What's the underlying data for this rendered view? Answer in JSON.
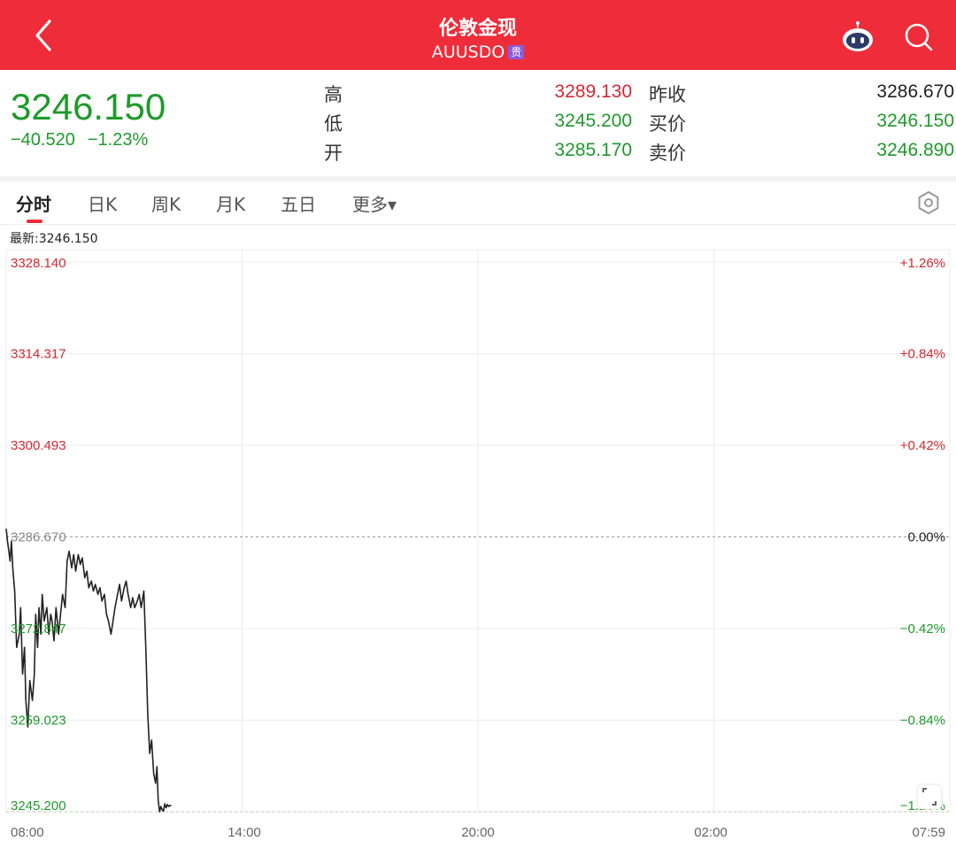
{
  "header": {
    "title": "伦敦金现",
    "subtitle": "AUUSDO",
    "badge": "贵",
    "back_icon": "chevron-left-icon",
    "robot_icon": "robot-icon",
    "search_icon": "search-icon"
  },
  "quote": {
    "last": "3246.150",
    "change": "−40.520",
    "change_pct": "−1.23%",
    "high_label": "高",
    "high": "3289.130",
    "low_label": "低",
    "low": "3245.200",
    "open_label": "开",
    "open": "3285.170",
    "prev_label": "昨收",
    "prev": "3286.670",
    "bid_label": "买价",
    "bid": "3246.150",
    "ask_label": "卖价",
    "ask": "3246.890",
    "colors": {
      "up": "#d5292f",
      "down": "#1e9a2b",
      "neutral": "#222222"
    }
  },
  "tabs": [
    {
      "label": "分时"
    },
    {
      "label": "日K"
    },
    {
      "label": "周K"
    },
    {
      "label": "月K"
    },
    {
      "label": "五日"
    },
    {
      "label": "更多▾"
    }
  ],
  "active_tab": 0,
  "latest_label": "最新:3246.150",
  "chart_data": {
    "type": "line",
    "prev_close": 3286.67,
    "ylim": [
      3245.2,
      3328.14
    ],
    "y_ticks": [
      "3328.140",
      "3314.317",
      "3300.493",
      "3286.670",
      "3272.847",
      "3259.023",
      "3245.200"
    ],
    "y_tick_values": [
      3328.14,
      3314.317,
      3300.493,
      3286.67,
      3272.847,
      3259.023,
      3245.2
    ],
    "pct_ticks": [
      "+1.26%",
      "+0.84%",
      "+0.42%",
      "0.00%",
      "−0.42%",
      "−0.84%",
      "−1.26%"
    ],
    "x_ticks": [
      "08:00",
      "14:00",
      "20:00",
      "02:00",
      "07:59"
    ],
    "session_minutes": 1440,
    "grid": true,
    "series": [
      {
        "x": [
          0,
          2,
          4,
          6,
          8,
          10,
          13,
          16,
          20,
          22,
          25,
          28,
          30,
          33,
          36,
          40,
          43,
          45,
          48,
          50,
          53,
          55,
          58,
          62,
          65,
          68,
          70,
          73,
          76,
          80,
          83,
          86,
          90,
          93,
          96,
          100,
          103,
          106,
          110,
          113,
          116,
          120,
          123,
          126,
          130,
          133,
          136,
          140,
          143,
          146,
          150,
          153,
          156,
          160,
          163,
          166,
          170,
          173,
          176,
          180,
          183,
          186,
          190,
          193,
          196,
          200,
          203,
          206,
          210,
          213,
          216,
          219,
          222,
          225,
          228,
          230,
          232,
          234,
          236,
          238,
          240,
          242,
          244,
          246,
          248,
          250,
          252
        ],
        "values": [
          3287.9,
          3286.0,
          3284.5,
          3283.0,
          3286.0,
          3282.0,
          3278.5,
          3270.0,
          3272.0,
          3276.0,
          3266.0,
          3270.0,
          3262.0,
          3258.0,
          3265.0,
          3262.0,
          3266.0,
          3275.0,
          3270.0,
          3276.0,
          3272.0,
          3278.0,
          3274.0,
          3276.0,
          3272.0,
          3275.0,
          3274.0,
          3271.0,
          3276.0,
          3272.0,
          3275.0,
          3278.0,
          3276.0,
          3283.0,
          3284.5,
          3282.0,
          3284.0,
          3281.5,
          3284.0,
          3282.5,
          3283.5,
          3280.5,
          3281.5,
          3279.0,
          3280.0,
          3278.5,
          3279.5,
          3278.0,
          3279.0,
          3277.0,
          3278.0,
          3275.0,
          3274.0,
          3272.0,
          3274.0,
          3276.0,
          3278.0,
          3279.5,
          3277.0,
          3279.0,
          3280.0,
          3278.0,
          3276.0,
          3277.5,
          3276.0,
          3277.0,
          3278.0,
          3276.0,
          3278.5,
          3270.0,
          3260.0,
          3254.0,
          3256.0,
          3251.0,
          3249.5,
          3252.0,
          3247.0,
          3245.2,
          3246.0,
          3245.5,
          3245.3,
          3246.4,
          3245.8,
          3246.3,
          3246.0,
          3246.15,
          3246.15
        ]
      }
    ]
  }
}
